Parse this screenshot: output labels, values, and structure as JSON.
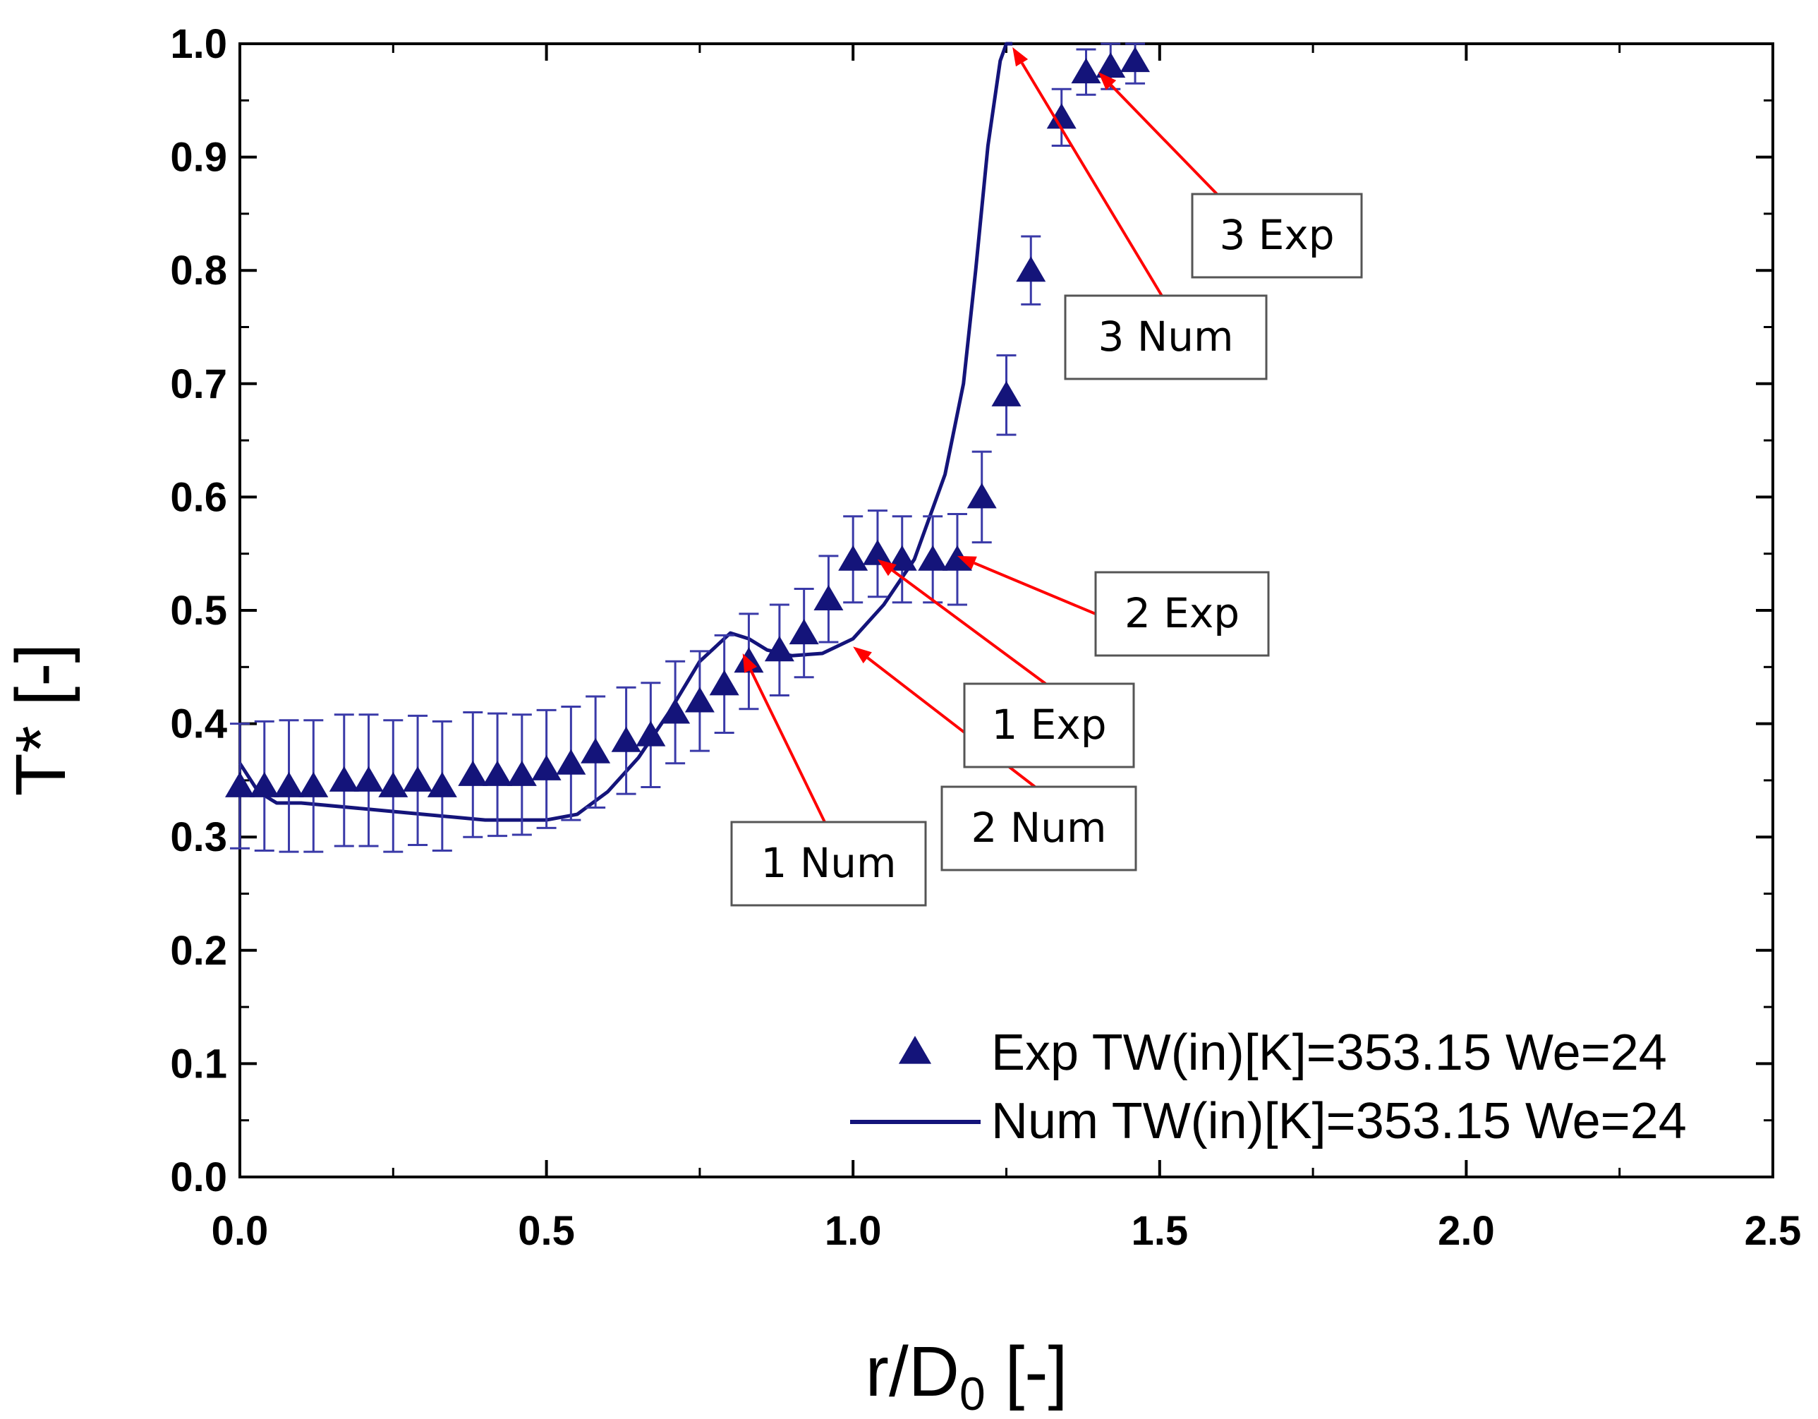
{
  "chart_data": {
    "type": "scatter",
    "xlabel": "r/D",
    "xlabel_sub": "0",
    "xlabel_suffix": " [-]",
    "ylabel": "T* [-]",
    "xlim": [
      0.0,
      2.5
    ],
    "ylim": [
      0.0,
      1.0
    ],
    "x_ticks": [
      0.0,
      0.5,
      1.0,
      1.5,
      2.0,
      2.5
    ],
    "x_tick_labels": [
      "0.0",
      "0.5",
      "1.0",
      "1.5",
      "2.0",
      "2.5"
    ],
    "y_ticks": [
      0.0,
      0.1,
      0.2,
      0.3,
      0.4,
      0.5,
      0.6,
      0.7,
      0.8,
      0.9,
      1.0
    ],
    "y_tick_labels": [
      "0.0",
      "0.1",
      "0.2",
      "0.3",
      "0.4",
      "0.5",
      "0.6",
      "0.7",
      "0.8",
      "0.9",
      "1.0"
    ],
    "grid": false,
    "legend_position": "bottom-right",
    "colors": {
      "series": "#14147a",
      "annotation": "#ff0000"
    },
    "series": [
      {
        "name": "Exp TW(in)[K]=353.15 We=24",
        "kind": "scatter",
        "marker": "triangle",
        "x": [
          0.0,
          0.04,
          0.08,
          0.12,
          0.17,
          0.21,
          0.25,
          0.29,
          0.33,
          0.38,
          0.42,
          0.46,
          0.5,
          0.54,
          0.58,
          0.63,
          0.67,
          0.71,
          0.75,
          0.79,
          0.83,
          0.88,
          0.92,
          0.96,
          1.0,
          1.04,
          1.08,
          1.13,
          1.17,
          1.21,
          1.25,
          1.29,
          1.34,
          1.38,
          1.42,
          1.46
        ],
        "y": [
          0.345,
          0.345,
          0.345,
          0.345,
          0.35,
          0.35,
          0.345,
          0.35,
          0.345,
          0.355,
          0.355,
          0.355,
          0.36,
          0.365,
          0.375,
          0.385,
          0.39,
          0.41,
          0.42,
          0.435,
          0.455,
          0.465,
          0.48,
          0.51,
          0.545,
          0.55,
          0.545,
          0.545,
          0.545,
          0.6,
          0.69,
          0.8,
          0.935,
          0.975,
          0.98,
          0.985
        ],
        "err": [
          0.055,
          0.057,
          0.058,
          0.058,
          0.058,
          0.058,
          0.058,
          0.057,
          0.057,
          0.055,
          0.054,
          0.053,
          0.052,
          0.05,
          0.049,
          0.047,
          0.046,
          0.045,
          0.044,
          0.043,
          0.042,
          0.04,
          0.039,
          0.038,
          0.038,
          0.038,
          0.038,
          0.038,
          0.04,
          0.04,
          0.035,
          0.03,
          0.025,
          0.02,
          0.02,
          0.02
        ]
      },
      {
        "name": "Num TW(in)[K]=353.15 We=24",
        "kind": "line",
        "x": [
          0.0,
          0.03,
          0.06,
          0.1,
          0.2,
          0.3,
          0.4,
          0.5,
          0.55,
          0.6,
          0.65,
          0.7,
          0.75,
          0.8,
          0.83,
          0.86,
          0.9,
          0.95,
          1.0,
          1.05,
          1.1,
          1.15,
          1.18,
          1.2,
          1.22,
          1.24,
          1.25,
          1.26
        ],
        "y": [
          0.365,
          0.34,
          0.33,
          0.33,
          0.325,
          0.32,
          0.315,
          0.315,
          0.32,
          0.34,
          0.37,
          0.41,
          0.455,
          0.48,
          0.475,
          0.465,
          0.46,
          0.462,
          0.475,
          0.505,
          0.545,
          0.62,
          0.7,
          0.8,
          0.91,
          0.985,
          1.0,
          1.0
        ]
      }
    ],
    "annotations": [
      {
        "text": "1 Num",
        "target": [
          0.82,
          0.462
        ]
      },
      {
        "text": "2 Num",
        "target": [
          1.0,
          0.468
        ]
      },
      {
        "text": "1 Exp",
        "target": [
          1.04,
          0.545
        ]
      },
      {
        "text": "2 Exp",
        "target": [
          1.17,
          0.548
        ]
      },
      {
        "text": "3 Num",
        "target": [
          1.26,
          0.997
        ]
      },
      {
        "text": "3 Exp",
        "target": [
          1.4,
          0.975
        ]
      }
    ]
  }
}
